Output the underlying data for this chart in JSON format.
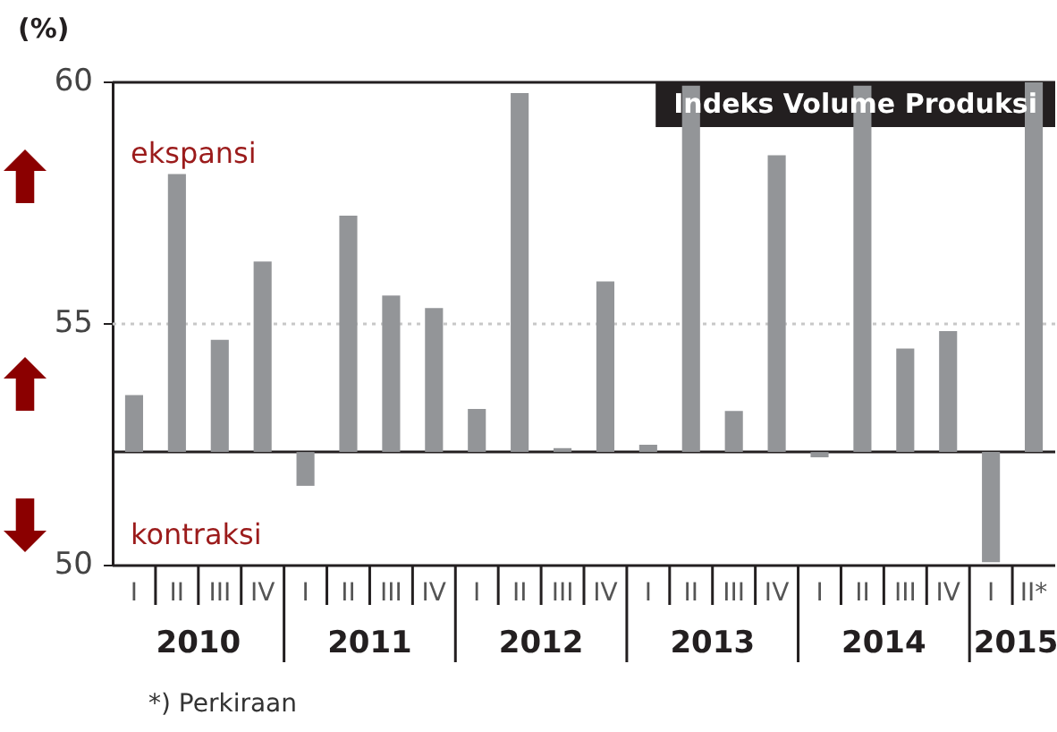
{
  "chart_data": {
    "type": "bar",
    "title": "Indeks Volume Produksi",
    "ylabel": "(%)",
    "categories": [
      "I",
      "II",
      "III",
      "IV",
      "I",
      "II",
      "III",
      "IV",
      "I",
      "II",
      "III",
      "IV",
      "I",
      "II",
      "III",
      "IV",
      "I",
      "II",
      "III",
      "IV",
      "I",
      "II*"
    ],
    "values": [
      1.18,
      5.75,
      2.32,
      3.94,
      -0.7,
      4.89,
      3.24,
      2.98,
      0.89,
      7.43,
      0.08,
      3.53,
      0.15,
      7.58,
      0.85,
      6.14,
      -0.11,
      7.58,
      2.14,
      2.5,
      -2.28,
      7.65
    ],
    "base": [
      52.35,
      52.35,
      52.35,
      52.35,
      52.35,
      52.35,
      52.35,
      52.35,
      52.35,
      52.35,
      52.35,
      52.35,
      52.35,
      52.35,
      52.35,
      52.35,
      52.35,
      52.35,
      52.35,
      52.35,
      52.35,
      52.35
    ],
    "color": "#939598",
    "ylim": [
      50,
      60
    ],
    "yticks": [
      50,
      55,
      60
    ],
    "ref_lines": [
      {
        "axis": "y",
        "value": 55,
        "color": "#c8c8c8",
        "line_style": "dotted"
      },
      {
        "axis": "y",
        "value": 52.35,
        "color": "#231f20",
        "line_style": "solid"
      }
    ],
    "annotations": [
      "2010",
      "2011",
      "2012",
      "2013",
      "2014",
      "2015",
      "ekspansi",
      "kontraksi",
      "*) Perkiraan"
    ]
  }
}
